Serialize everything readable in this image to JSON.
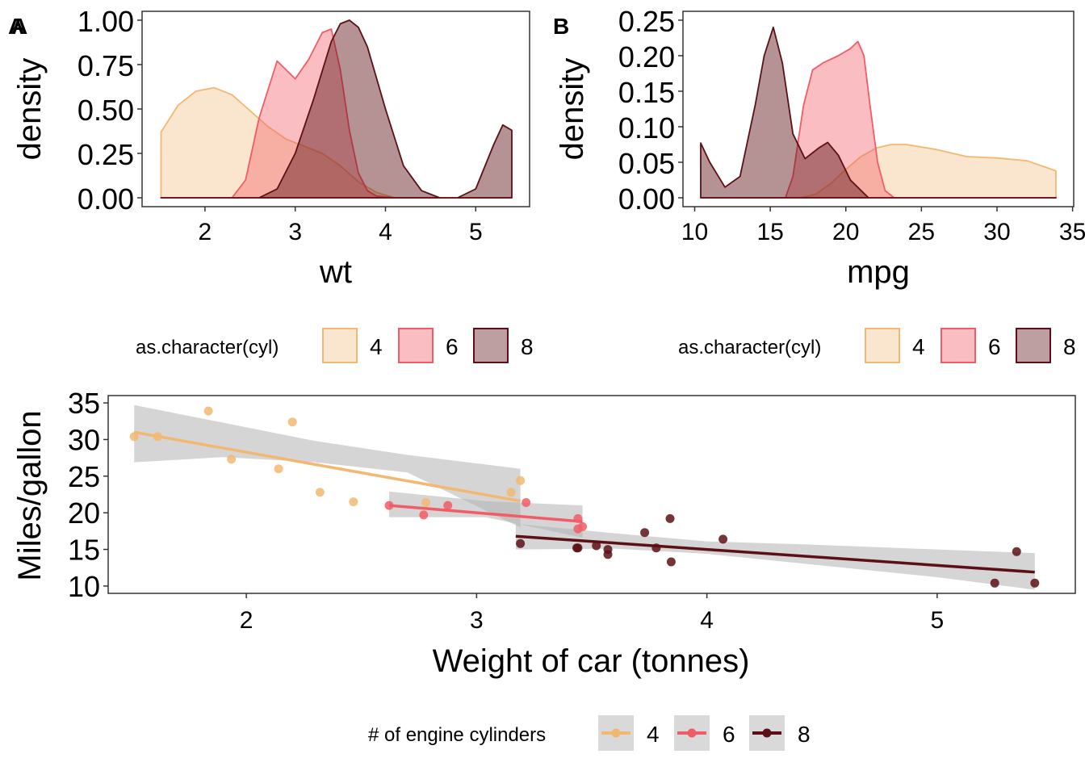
{
  "colors": {
    "cyl4": "#F2B872",
    "cyl6": "#F25C66",
    "cyl8": "#5C1015",
    "ribbon": "#B3B3B3"
  },
  "chart_data": [
    {
      "type": "area",
      "panel_tag": "A",
      "xlabel": "wt",
      "ylabel": "density",
      "xlim": [
        1.5,
        5.4
      ],
      "ylim": [
        0,
        1.0
      ],
      "xticks": [
        2,
        3,
        4,
        5
      ],
      "yticks": [
        "0.00",
        "0.25",
        "0.50",
        "0.75",
        "1.00"
      ],
      "legend": {
        "title": "as.character(cyl)",
        "placement": "bottom",
        "labels": [
          "4",
          "6",
          "8"
        ]
      },
      "series": [
        {
          "name": "4",
          "x": [
            1.513,
            1.7,
            1.9,
            2.1,
            2.3,
            2.5,
            2.7,
            2.9,
            3.1,
            3.3,
            3.5,
            3.7,
            3.9,
            4.1,
            5.4
          ],
          "y": [
            0.37,
            0.52,
            0.6,
            0.62,
            0.58,
            0.49,
            0.4,
            0.33,
            0.29,
            0.25,
            0.18,
            0.09,
            0.03,
            0.0,
            0.0
          ]
        },
        {
          "name": "6",
          "x": [
            1.513,
            2.3,
            2.45,
            2.6,
            2.8,
            3.0,
            3.15,
            3.3,
            3.4,
            3.5,
            3.6,
            3.7,
            3.8,
            3.9,
            4.1,
            5.4
          ],
          "y": [
            0.0,
            0.0,
            0.1,
            0.45,
            0.77,
            0.67,
            0.78,
            0.93,
            0.95,
            0.72,
            0.38,
            0.14,
            0.04,
            0.01,
            0.0,
            0.0
          ]
        },
        {
          "name": "8",
          "x": [
            1.513,
            2.6,
            2.8,
            3.0,
            3.2,
            3.4,
            3.5,
            3.6,
            3.7,
            3.8,
            4.0,
            4.2,
            4.4,
            4.6,
            4.8,
            5.0,
            5.2,
            5.3,
            5.4
          ],
          "y": [
            0.0,
            0.0,
            0.05,
            0.25,
            0.55,
            0.88,
            0.98,
            1.0,
            0.96,
            0.85,
            0.5,
            0.18,
            0.04,
            0.0,
            0.0,
            0.05,
            0.3,
            0.41,
            0.38
          ]
        }
      ]
    },
    {
      "type": "area",
      "panel_tag": "B",
      "xlabel": "mpg",
      "ylabel": "density",
      "xlim": [
        10.4,
        33.9
      ],
      "ylim": [
        0,
        0.25
      ],
      "xticks": [
        10,
        15,
        20,
        25,
        30,
        35
      ],
      "yticks": [
        "0.00",
        "0.05",
        "0.10",
        "0.15",
        "0.20",
        "0.25"
      ],
      "legend": {
        "title": "as.character(cyl)",
        "placement": "bottom",
        "labels": [
          "4",
          "6",
          "8"
        ]
      },
      "series": [
        {
          "name": "4",
          "x": [
            10.4,
            17.0,
            18.0,
            19.0,
            20.0,
            21.0,
            22.0,
            23.0,
            24.0,
            26.0,
            28.0,
            30.0,
            32.0,
            33.9
          ],
          "y": [
            0.0,
            0.0,
            0.005,
            0.02,
            0.04,
            0.058,
            0.07,
            0.075,
            0.075,
            0.068,
            0.058,
            0.056,
            0.052,
            0.038
          ]
        },
        {
          "name": "6",
          "x": [
            10.4,
            16.0,
            16.5,
            17.2,
            17.8,
            18.5,
            19.5,
            20.3,
            20.8,
            21.2,
            21.6,
            22.1,
            22.6,
            23.2,
            33.9
          ],
          "y": [
            0.0,
            0.0,
            0.03,
            0.13,
            0.18,
            0.19,
            0.2,
            0.21,
            0.22,
            0.2,
            0.13,
            0.05,
            0.01,
            0.0,
            0.0
          ]
        },
        {
          "name": "8",
          "x": [
            10.4,
            11.0,
            12.0,
            13.0,
            14.0,
            14.6,
            15.2,
            15.8,
            16.5,
            17.3,
            18.2,
            18.8,
            19.5,
            20.3,
            21.5,
            33.9
          ],
          "y": [
            0.077,
            0.05,
            0.015,
            0.03,
            0.13,
            0.2,
            0.24,
            0.19,
            0.09,
            0.055,
            0.07,
            0.078,
            0.06,
            0.025,
            0.0,
            0.0
          ]
        }
      ]
    },
    {
      "type": "scatter",
      "xlabel": "Weight of car (tonnes)",
      "ylabel": "Miles/gallon",
      "xlim": [
        1.4,
        5.6
      ],
      "ylim": [
        9,
        36
      ],
      "xticks": [
        2,
        3,
        4,
        5
      ],
      "yticks": [
        10,
        15,
        20,
        25,
        30,
        35
      ],
      "legend": {
        "title": "# of engine cylinders",
        "placement": "bottom",
        "labels": [
          "4",
          "6",
          "8"
        ]
      },
      "series": [
        {
          "name": "4",
          "points": [
            [
              2.32,
              22.8
            ],
            [
              3.19,
              24.4
            ],
            [
              3.15,
              22.8
            ],
            [
              2.2,
              32.4
            ],
            [
              1.615,
              30.4
            ],
            [
              1.835,
              33.9
            ],
            [
              2.465,
              21.5
            ],
            [
              1.935,
              27.3
            ],
            [
              2.14,
              26.0
            ],
            [
              1.513,
              30.4
            ],
            [
              2.78,
              21.4
            ]
          ],
          "fit": [
            [
              1.513,
              31.0
            ],
            [
              3.19,
              21.6
            ]
          ],
          "band": [
            [
              1.513,
              26.9,
              34.7
            ],
            [
              1.9,
              27.6,
              32.3
            ],
            [
              2.3,
              26.9,
              29.8
            ],
            [
              2.7,
              25.5,
              27.9
            ],
            [
              3.19,
              18.0,
              26.0
            ]
          ]
        },
        {
          "name": "6",
          "points": [
            [
              2.62,
              21.0
            ],
            [
              2.875,
              21.0
            ],
            [
              3.215,
              21.4
            ],
            [
              3.46,
              18.1
            ],
            [
              3.44,
              19.2
            ],
            [
              3.44,
              17.8
            ],
            [
              2.77,
              19.7
            ]
          ],
          "fit": [
            [
              2.62,
              21.0
            ],
            [
              3.46,
              18.8
            ]
          ],
          "band": [
            [
              2.62,
              19.4,
              22.9
            ],
            [
              3.04,
              19.4,
              21.6
            ],
            [
              3.46,
              16.6,
              21.0
            ]
          ]
        },
        {
          "name": "8",
          "points": [
            [
              3.57,
              14.3
            ],
            [
              3.19,
              15.8
            ],
            [
              3.44,
              15.2
            ],
            [
              3.73,
              17.3
            ],
            [
              3.78,
              15.2
            ],
            [
              3.84,
              19.2
            ],
            [
              3.845,
              13.3
            ],
            [
              4.07,
              16.4
            ],
            [
              3.52,
              15.5
            ],
            [
              3.435,
              15.2
            ],
            [
              5.25,
              10.4
            ],
            [
              5.424,
              10.4
            ],
            [
              5.345,
              14.7
            ],
            [
              3.57,
              15.0
            ]
          ],
          "fit": [
            [
              3.17,
              16.8
            ],
            [
              5.424,
              11.9
            ]
          ],
          "band": [
            [
              3.17,
              15.0,
              18.5
            ],
            [
              3.6,
              15.1,
              17.2
            ],
            [
              4.0,
              14.4,
              16.1
            ],
            [
              4.5,
              12.8,
              15.6
            ],
            [
              5.0,
              11.2,
              15.0
            ],
            [
              5.424,
              9.5,
              14.5
            ]
          ]
        }
      ]
    }
  ]
}
